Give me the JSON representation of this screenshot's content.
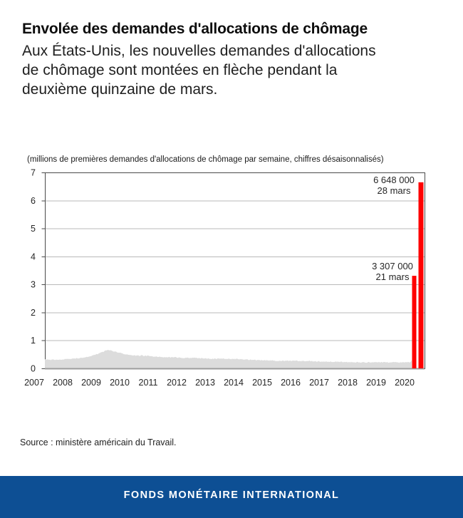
{
  "header": {
    "title": "Envolée des demandes d'allocations de chômage",
    "subtitle_lines": [
      "Aux États-Unis, les nouvelles demandes d'allocations",
      "de chômage sont montées en flèche pendant la",
      "deuxième quinzaine de mars."
    ]
  },
  "chart_data": {
    "type": "area",
    "note": "(millions de premières demandes d'allocations de chômage par semaine, chiffres désaisonnalisés)",
    "title": "",
    "xlabel": "",
    "ylabel": "",
    "ylim": [
      0,
      7
    ],
    "y_ticks": [
      0,
      1,
      2,
      3,
      4,
      5,
      6,
      7
    ],
    "x_tick_labels": [
      "2007",
      "2008",
      "2009",
      "2010",
      "2011",
      "2012",
      "2013",
      "2014",
      "2015",
      "2016",
      "2017",
      "2018",
      "2019",
      "2020"
    ],
    "grid": "horizontal",
    "legend": "none",
    "series": [
      {
        "name": "Premières demandes hebdomadaires d'allocations de chômage (millions)",
        "type": "area",
        "points": [
          [
            2007.0,
            0.315
          ],
          [
            2007.25,
            0.31
          ],
          [
            2007.5,
            0.315
          ],
          [
            2007.75,
            0.33
          ],
          [
            2008.0,
            0.35
          ],
          [
            2008.25,
            0.37
          ],
          [
            2008.5,
            0.4
          ],
          [
            2008.75,
            0.47
          ],
          [
            2009.0,
            0.55
          ],
          [
            2009.15,
            0.62
          ],
          [
            2009.25,
            0.65
          ],
          [
            2009.4,
            0.63
          ],
          [
            2009.6,
            0.57
          ],
          [
            2009.8,
            0.53
          ],
          [
            2010.0,
            0.48
          ],
          [
            2010.25,
            0.46
          ],
          [
            2010.5,
            0.46
          ],
          [
            2010.75,
            0.44
          ],
          [
            2011.0,
            0.42
          ],
          [
            2011.25,
            0.41
          ],
          [
            2011.5,
            0.4
          ],
          [
            2012.0,
            0.375
          ],
          [
            2012.5,
            0.37
          ],
          [
            2013.0,
            0.345
          ],
          [
            2013.5,
            0.34
          ],
          [
            2014.0,
            0.33
          ],
          [
            2014.5,
            0.3
          ],
          [
            2015.0,
            0.285
          ],
          [
            2015.5,
            0.27
          ],
          [
            2016.0,
            0.27
          ],
          [
            2016.5,
            0.26
          ],
          [
            2017.0,
            0.245
          ],
          [
            2017.5,
            0.24
          ],
          [
            2018.0,
            0.225
          ],
          [
            2018.5,
            0.215
          ],
          [
            2019.0,
            0.22
          ],
          [
            2019.5,
            0.215
          ],
          [
            2020.0,
            0.21
          ],
          [
            2020.15,
            0.22
          ],
          [
            2020.2,
            0.282
          ]
        ]
      }
    ],
    "spikes": [
      {
        "date_label": "21 mars",
        "value_label": "3 307 000",
        "value_millions": 3.307
      },
      {
        "date_label": "28 mars",
        "value_label": "6 648 000",
        "value_millions": 6.648
      }
    ],
    "colors": {
      "area": "#dcdcdc",
      "spike": "#fe0000",
      "grid": "#b9b9b9",
      "plot_border": "#4a4a4a",
      "axis_line": "#9d9d9d",
      "tick_text": "#262626",
      "annotation_text": "#262626"
    }
  },
  "source": "Source : ministère américain du Travail.",
  "footer": {
    "label": "FONDS MONÉTAIRE INTERNATIONAL",
    "bg": "#0d4f94"
  }
}
